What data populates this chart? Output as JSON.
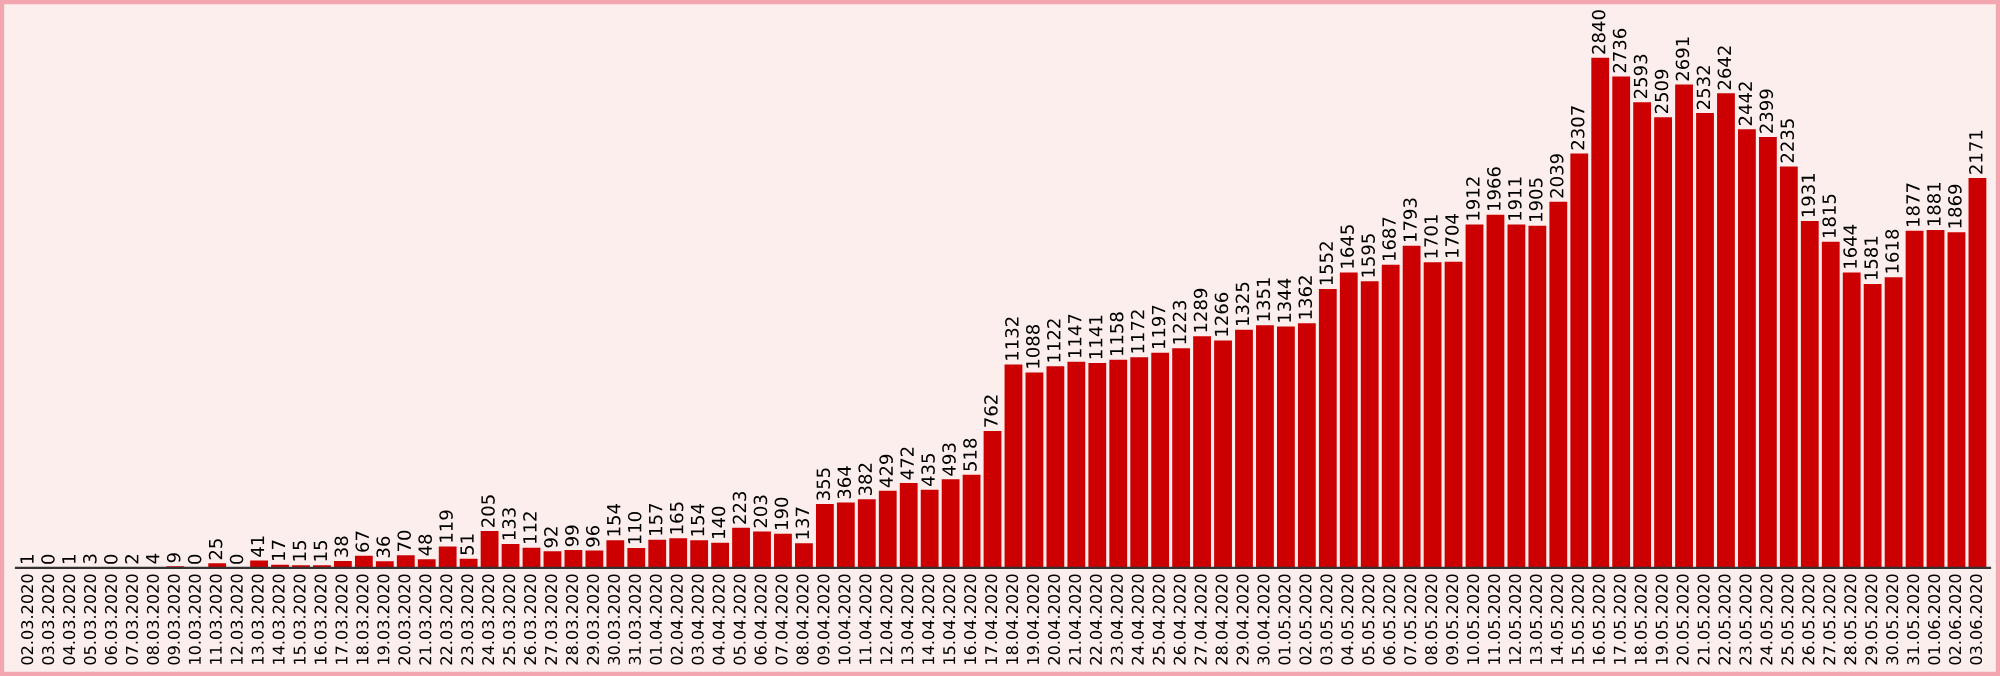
{
  "chart_data": {
    "type": "bar",
    "categories": [
      "02.03.2020",
      "03.03.2020",
      "04.03.2020",
      "05.03.2020",
      "06.03.2020",
      "07.03.2020",
      "08.03.2020",
      "09.03.2020",
      "10.03.2020",
      "11.03.2020",
      "12.03.2020",
      "13.03.2020",
      "14.03.2020",
      "15.03.2020",
      "16.03.2020",
      "17.03.2020",
      "18.03.2020",
      "19.03.2020",
      "20.03.2020",
      "21.03.2020",
      "22.03.2020",
      "23.03.2020",
      "24.03.2020",
      "25.03.2020",
      "26.03.2020",
      "27.03.2020",
      "28.03.2020",
      "29.03.2020",
      "30.03.2020",
      "31.03.2020",
      "01.04.2020",
      "02.04.2020",
      "03.04.2020",
      "04.04.2020",
      "05.04.2020",
      "06.04.2020",
      "07.04.2020",
      "08.04.2020",
      "09.04.2020",
      "10.04.2020",
      "11.04.2020",
      "12.04.2020",
      "13.04.2020",
      "14.04.2020",
      "15.04.2020",
      "16.04.2020",
      "17.04.2020",
      "18.04.2020",
      "19.04.2020",
      "20.04.2020",
      "21.04.2020",
      "22.04.2020",
      "23.04.2020",
      "24.04.2020",
      "25.04.2020",
      "26.04.2020",
      "27.04.2020",
      "28.04.2020",
      "29.04.2020",
      "30.04.2020",
      "01.05.2020",
      "02.05.2020",
      "03.05.2020",
      "04.05.2020",
      "05.05.2020",
      "06.05.2020",
      "07.05.2020",
      "08.05.2020",
      "09.05.2020",
      "10.05.2020",
      "11.05.2020",
      "12.05.2020",
      "13.05.2020",
      "14.05.2020",
      "15.05.2020",
      "16.05.2020",
      "17.05.2020",
      "18.05.2020",
      "19.05.2020",
      "20.05.2020",
      "21.05.2020",
      "22.05.2020",
      "23.05.2020",
      "24.05.2020",
      "25.05.2020",
      "26.05.2020",
      "27.05.2020",
      "28.05.2020",
      "29.05.2020",
      "30.05.2020",
      "31.05.2020",
      "01.06.2020",
      "02.06.2020",
      "03.06.2020"
    ],
    "values": [
      1,
      0,
      1,
      3,
      0,
      2,
      4,
      9,
      0,
      25,
      0,
      41,
      17,
      15,
      15,
      38,
      67,
      36,
      70,
      48,
      119,
      51,
      205,
      133,
      112,
      92,
      99,
      96,
      154,
      110,
      157,
      165,
      154,
      140,
      223,
      203,
      190,
      137,
      355,
      364,
      382,
      429,
      472,
      435,
      493,
      518,
      762,
      1132,
      1088,
      1122,
      1147,
      1141,
      1158,
      1172,
      1197,
      1223,
      1289,
      1266,
      1325,
      1351,
      1344,
      1362,
      1552,
      1645,
      1595,
      1687,
      1793,
      1701,
      1704,
      1912,
      1966,
      1911,
      1905,
      2039,
      2307,
      2840,
      2736,
      2593,
      2509,
      2691,
      2532,
      2642,
      2442,
      2399,
      2235,
      1931,
      1815,
      1644,
      1581,
      1618,
      1877,
      1881,
      1869,
      2171
    ],
    "color": "#cc0000",
    "data_labels": true,
    "grid": false,
    "legend": false
  }
}
